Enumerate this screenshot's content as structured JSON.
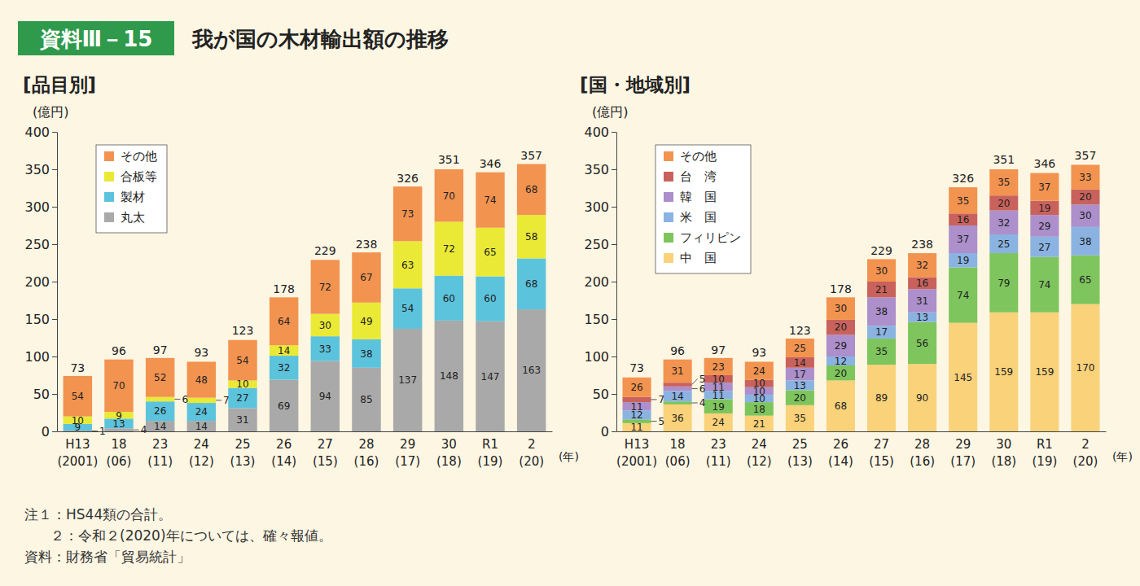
{
  "header": {
    "badge": "資料Ⅲ－15",
    "title": "我が国の木材輸出額の推移"
  },
  "notes": [
    "注１：HS44類の合計。",
    "２：令和２(2020)年については、確々報値。",
    "資料：財務省「貿易統計」"
  ],
  "chart_data": [
    {
      "type": "bar",
      "title": "[品目別]",
      "y_label": "(億円)",
      "x_label": "(年)",
      "stacked": true,
      "data_labels": true,
      "grid": false,
      "legend": "top-left",
      "categories": [
        "H13\n(2001)",
        "18\n(06)",
        "23\n(11)",
        "24\n(12)",
        "25\n(13)",
        "26\n(14)",
        "27\n(15)",
        "28\n(16)",
        "29\n(17)",
        "30\n(18)",
        "R1\n(19)",
        "2\n(20)"
      ],
      "series": [
        {
          "name": "丸太",
          "color": "#a9a9a9",
          "values": [
            1,
            4,
            14,
            14,
            31,
            69,
            94,
            85,
            137,
            148,
            147,
            163
          ]
        },
        {
          "name": "製材",
          "color": "#5cc3dc",
          "values": [
            9,
            13,
            26,
            24,
            27,
            32,
            33,
            38,
            54,
            60,
            60,
            68
          ]
        },
        {
          "name": "合板等",
          "color": "#e9e936",
          "values": [
            10,
            9,
            6,
            7,
            10,
            14,
            30,
            49,
            63,
            72,
            65,
            58
          ]
        },
        {
          "name": "その他",
          "color": "#f29350",
          "values": [
            54,
            70,
            52,
            48,
            54,
            64,
            72,
            67,
            73,
            70,
            74,
            68
          ]
        }
      ],
      "totals": [
        73,
        96,
        97,
        93,
        123,
        178,
        229,
        238,
        326,
        351,
        346,
        357
      ],
      "ylim": [
        0,
        400
      ],
      "yticks": [
        0,
        50,
        100,
        150,
        200,
        250,
        300,
        350,
        400
      ]
    },
    {
      "type": "bar",
      "title": "[国・地域別]",
      "y_label": "(億円)",
      "x_label": "(年)",
      "stacked": true,
      "data_labels": true,
      "grid": false,
      "legend": "top-left",
      "categories": [
        "H13\n(2001)",
        "18\n(06)",
        "23\n(11)",
        "24\n(12)",
        "25\n(13)",
        "26\n(14)",
        "27\n(15)",
        "28\n(16)",
        "29\n(17)",
        "30\n(18)",
        "R1\n(19)",
        "2\n(20)"
      ],
      "series": [
        {
          "name": "中　国",
          "color": "#f9d27a",
          "values": [
            11,
            36,
            24,
            21,
            35,
            68,
            89,
            90,
            145,
            159,
            159,
            170
          ]
        },
        {
          "name": "フィリピン",
          "color": "#7dc55c",
          "values": [
            5,
            4,
            19,
            18,
            20,
            20,
            35,
            56,
            74,
            79,
            74,
            65
          ]
        },
        {
          "name": "米　国",
          "color": "#8ab3e2",
          "values": [
            12,
            14,
            11,
            10,
            13,
            12,
            17,
            13,
            19,
            25,
            27,
            38
          ]
        },
        {
          "name": "韓　国",
          "color": "#ac8fcb",
          "values": [
            11,
            6,
            11,
            10,
            17,
            29,
            38,
            31,
            37,
            32,
            29,
            30
          ]
        },
        {
          "name": "台　湾",
          "color": "#c9625c",
          "values": [
            7,
            5,
            10,
            10,
            14,
            20,
            21,
            16,
            16,
            20,
            19,
            20
          ]
        },
        {
          "name": "その他",
          "color": "#f29350",
          "values": [
            26,
            31,
            23,
            24,
            25,
            30,
            30,
            32,
            35,
            35,
            37,
            33
          ]
        }
      ],
      "totals": [
        73,
        96,
        97,
        93,
        123,
        178,
        229,
        238,
        326,
        351,
        346,
        357
      ],
      "ylim": [
        0,
        400
      ],
      "yticks": [
        0,
        50,
        100,
        150,
        200,
        250,
        300,
        350,
        400
      ]
    }
  ]
}
